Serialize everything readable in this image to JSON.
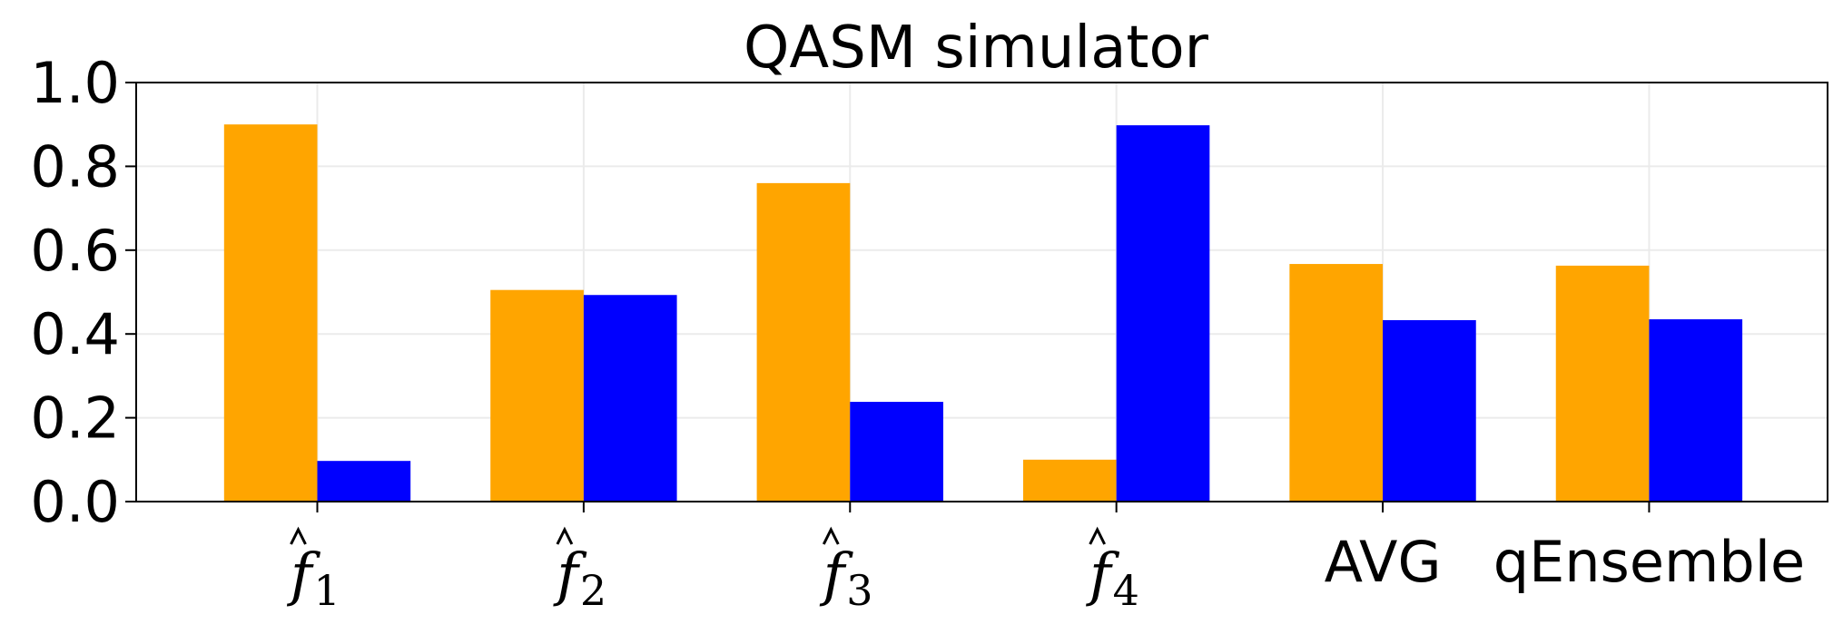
{
  "chart_data": {
    "type": "bar",
    "title": "QASM simulator",
    "xlabel": "",
    "ylabel": "",
    "ylim": [
      0,
      1.0
    ],
    "yticks": [
      "0.0",
      "0.2",
      "0.4",
      "0.6",
      "0.8",
      "1.0"
    ],
    "grid": true,
    "categories": [
      {
        "base": "f",
        "sub": "1",
        "hat": true
      },
      {
        "base": "f",
        "sub": "2",
        "hat": true
      },
      {
        "base": "f",
        "sub": "3",
        "hat": true
      },
      {
        "base": "f",
        "sub": "4",
        "hat": true
      },
      {
        "text": "AVG"
      },
      {
        "text": "qEnsemble"
      }
    ],
    "series": [
      {
        "color": "#FFA500",
        "values": [
          0.9,
          0.505,
          0.76,
          0.1,
          0.567,
          0.563
        ]
      },
      {
        "color": "#0000FF",
        "values": [
          0.097,
          0.493,
          0.238,
          0.898,
          0.433,
          0.435
        ]
      }
    ]
  }
}
